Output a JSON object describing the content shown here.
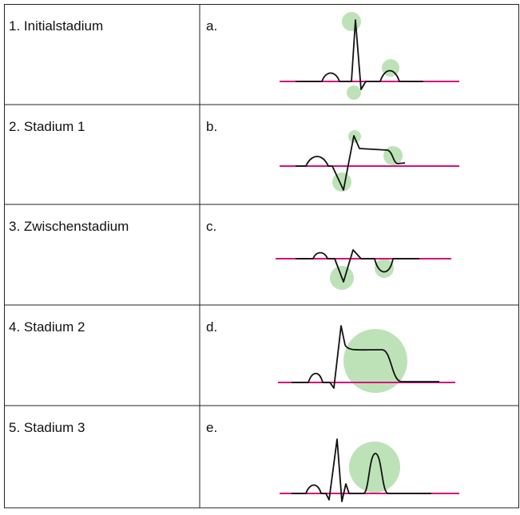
{
  "table": {
    "rows": [
      [
        "1. Initialstadium",
        "a."
      ],
      [
        "2. Stadium 1",
        "b."
      ],
      [
        "3. Zwischenstadium",
        "c."
      ],
      [
        "4. Stadium 2",
        "d."
      ],
      [
        "5. Stadium 3",
        "e."
      ]
    ]
  }
}
